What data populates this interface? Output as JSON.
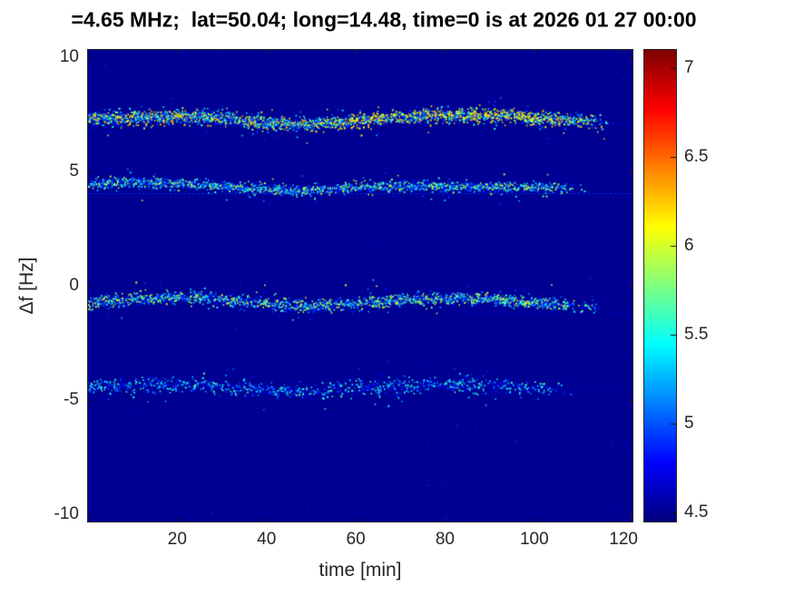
{
  "chart_data": {
    "type": "heatmap",
    "subtype": "doppler-spectrogram",
    "title": "=4.65 MHz;  lat=50.04; long=14.48, time=0 is at 2026 01 27 00:00",
    "title_fields": {
      "frequency": "4.65 MHz",
      "lat": "50.04",
      "long": "14.48",
      "time_zero": "2026 01 27 00:00"
    },
    "xlabel": "time [min]",
    "ylabel": "Δf [Hz]",
    "xlim": [
      0,
      122
    ],
    "ylim": [
      -10.3,
      10.3
    ],
    "xticks": [
      20,
      40,
      60,
      80,
      100,
      120
    ],
    "yticks": [
      10,
      5,
      0,
      -5,
      -10
    ],
    "grid": false,
    "legend": "none",
    "colormap": "jet",
    "background_value": 4.5,
    "colorbar": {
      "position": "right",
      "ticks": [
        7,
        6.5,
        6,
        5.5,
        5,
        4.5
      ],
      "vmin": 4.45,
      "vmax": 7.1
    },
    "seed": 7,
    "background_noise": {
      "count": 110,
      "v_lo": 4.5,
      "v_hi": 4.95
    },
    "traces": [
      {
        "name": "doppler-trace-plus-7",
        "points": [
          [
            0,
            7.3
          ],
          [
            10,
            7.35
          ],
          [
            20,
            7.4
          ],
          [
            30,
            7.3
          ],
          [
            40,
            7.12
          ],
          [
            50,
            7.05
          ],
          [
            57,
            7.15
          ],
          [
            65,
            7.3
          ],
          [
            75,
            7.42
          ],
          [
            85,
            7.45
          ],
          [
            95,
            7.38
          ],
          [
            102,
            7.3
          ],
          [
            110,
            7.18
          ],
          [
            118,
            7.1
          ]
        ],
        "t_end": 118,
        "density": 2.7,
        "spread": 0.15,
        "v_lo": 4.85,
        "v_hi": 6.35,
        "hot": 0.15,
        "hot_window": [
          55,
          108
        ],
        "hot_mult": 2.0
      },
      {
        "name": "doppler-trace-plus-4",
        "points": [
          [
            0,
            4.42
          ],
          [
            8,
            4.5
          ],
          [
            16,
            4.48
          ],
          [
            24,
            4.4
          ],
          [
            32,
            4.3
          ],
          [
            40,
            4.2
          ],
          [
            48,
            4.15
          ],
          [
            56,
            4.25
          ],
          [
            64,
            4.33
          ],
          [
            72,
            4.35
          ],
          [
            80,
            4.33
          ],
          [
            88,
            4.3
          ],
          [
            96,
            4.3
          ],
          [
            104,
            4.28
          ],
          [
            112,
            4.25
          ]
        ],
        "t_end": 112,
        "density": 1.9,
        "spread": 0.11,
        "v_lo": 4.8,
        "v_hi": 6.05,
        "hot": 0.08,
        "hot_window": [
          55,
          100
        ],
        "hot_mult": 1.6
      },
      {
        "name": "doppler-trace-minus-1",
        "points": [
          [
            0,
            -0.75
          ],
          [
            10,
            -0.62
          ],
          [
            20,
            -0.52
          ],
          [
            30,
            -0.62
          ],
          [
            40,
            -0.8
          ],
          [
            50,
            -0.9
          ],
          [
            60,
            -0.78
          ],
          [
            70,
            -0.62
          ],
          [
            80,
            -0.55
          ],
          [
            90,
            -0.6
          ],
          [
            100,
            -0.72
          ],
          [
            108,
            -0.85
          ],
          [
            115,
            -0.95
          ]
        ],
        "t_end": 115,
        "density": 2.1,
        "spread": 0.13,
        "v_lo": 4.8,
        "v_hi": 6.1,
        "hot": 0.1,
        "hot_window": [
          60,
          100
        ],
        "hot_mult": 1.6
      },
      {
        "name": "doppler-trace-minus-4",
        "points": [
          [
            0,
            -4.5
          ],
          [
            10,
            -4.38
          ],
          [
            20,
            -4.3
          ],
          [
            30,
            -4.42
          ],
          [
            40,
            -4.55
          ],
          [
            50,
            -4.62
          ],
          [
            60,
            -4.5
          ],
          [
            70,
            -4.36
          ],
          [
            80,
            -4.3
          ],
          [
            90,
            -4.36
          ],
          [
            100,
            -4.5
          ],
          [
            110,
            -4.6
          ]
        ],
        "t_end": 110,
        "density": 1.4,
        "spread": 0.17,
        "v_lo": 4.7,
        "v_hi": 5.75,
        "hot": 0.05
      }
    ],
    "faint_lines": [
      {
        "f": 4.05,
        "t0": 0,
        "t1": 122,
        "value": 4.9,
        "alpha": 0.75,
        "dash": [
          3,
          2
        ]
      },
      {
        "f": -1.15,
        "t0": 84,
        "t1": 122,
        "value": 4.8,
        "alpha": 0.5,
        "dash": [
          2,
          3
        ]
      },
      {
        "f": 7.05,
        "t0": 104,
        "t1": 122,
        "value": 4.8,
        "alpha": 0.45,
        "dash": [
          2,
          3
        ]
      },
      {
        "f": -4.5,
        "t0": 100,
        "t1": 120,
        "value": 4.75,
        "alpha": 0.35,
        "dash": [
          2,
          3
        ]
      }
    ]
  }
}
